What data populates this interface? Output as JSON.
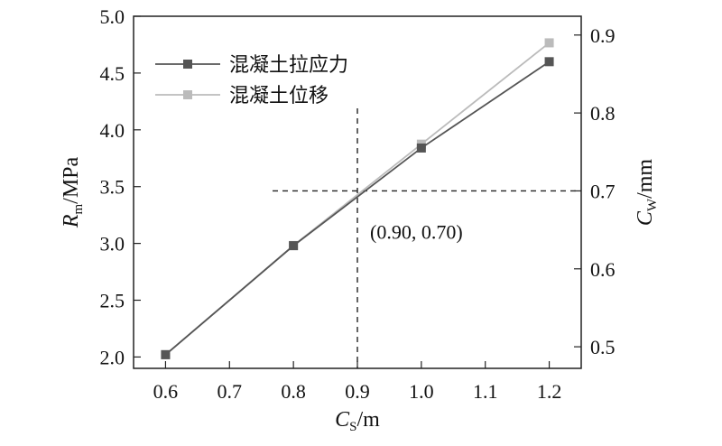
{
  "chart_data": {
    "type": "line",
    "x": [
      0.6,
      0.8,
      1.0,
      1.2
    ],
    "xlim": [
      0.55,
      1.25
    ],
    "x_ticks": [
      "0.6",
      "0.7",
      "0.8",
      "0.9",
      "1.0",
      "1.1",
      "1.2"
    ],
    "x_tick_values": [
      0.6,
      0.7,
      0.8,
      0.9,
      1.0,
      1.1,
      1.2
    ],
    "xlabel": {
      "main": "C",
      "sub": "S",
      "unit": "/m"
    },
    "ylim": [
      1.9,
      5.0
    ],
    "y_ticks": [
      "2.0",
      "2.5",
      "3.0",
      "3.5",
      "4.0",
      "4.5",
      "5.0"
    ],
    "y_tick_values": [
      2.0,
      2.5,
      3.0,
      3.5,
      4.0,
      4.5,
      5.0
    ],
    "ylabel": {
      "main": "R",
      "sub": "m",
      "unit": "/MPa"
    },
    "y2lim": [
      0.4723,
      0.9241
    ],
    "y2_ticks": [
      "0.5",
      "0.6",
      "0.7",
      "0.8",
      "0.9"
    ],
    "y2_tick_values": [
      0.5,
      0.6,
      0.7,
      0.8,
      0.9
    ],
    "y2label": {
      "main": "C",
      "sub": "W",
      "unit": "/mm"
    },
    "series": [
      {
        "name": "混凝土拉应力",
        "axis": "left",
        "values": [
          2.02,
          2.98,
          3.84,
          4.6
        ],
        "color": "#555555"
      },
      {
        "name": "混凝土位移",
        "axis": "right",
        "values": [
          0.49,
          0.63,
          0.76,
          0.89
        ],
        "color": "#bbbbbb"
      }
    ],
    "intersection": {
      "x": 0.9,
      "y2": 0.7,
      "label": "(0.90, 0.70)"
    },
    "legend_position": "top-left",
    "grid": false
  }
}
